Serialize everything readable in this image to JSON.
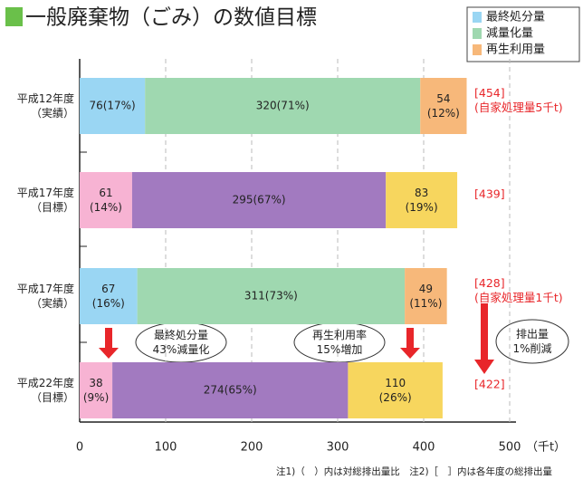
{
  "chart_data": {
    "type": "stacked-bar-horizontal",
    "title": "一般廃棄物（ごみ）の数値目標",
    "categories": [
      "平成12年度\n（実績）",
      "平成17年度\n（目標）",
      "平成17年度\n（実績）",
      "平成22年度\n（目標）"
    ],
    "series": [
      {
        "name": "最終処分量",
        "color": "#9ad6f3",
        "colors": [
          "#9ad6f3",
          "#f7b3d3",
          "#9ad6f3",
          "#f7b3d3"
        ],
        "values": [
          76,
          61,
          67,
          38
        ],
        "value_labels": [
          "76(17%)",
          "61\n(14%)",
          "67\n(16%)",
          "38\n(9%)"
        ]
      },
      {
        "name": "減量化量",
        "color": "#9fd8b0",
        "colors": [
          "#9fd8b0",
          "#a27ac0",
          "#9fd8b0",
          "#a27ac0"
        ],
        "values": [
          320,
          295,
          311,
          274
        ],
        "value_labels": [
          "320(71%)",
          "295(67%)",
          "311(73%)",
          "274(65%)"
        ]
      },
      {
        "name": "再生利用量",
        "color": "#f7b87a",
        "colors": [
          "#f7b87a",
          "#f7d65e",
          "#f7b87a",
          "#f7d65e"
        ],
        "values": [
          54,
          83,
          49,
          110
        ],
        "value_labels": [
          "54\n(12%)",
          "83\n(19%)",
          "49\n(11%)",
          "110\n(26%)"
        ]
      }
    ],
    "totals": [
      "[454]\n(自家処理量5千t)",
      "[439]",
      "[428]\n(自家処理量1千t)",
      "[422]"
    ],
    "callouts": [
      "最終処分量\n43%減量化",
      "再生利用率\n15%増加",
      "排出量\n1%削減"
    ],
    "xlim": [
      0,
      500
    ],
    "xticks": [
      0,
      100,
      200,
      300,
      400,
      500
    ],
    "grid": true,
    "x_unit": "（千t）",
    "footnote": "注1)（　）内は対総排出量比　注2)［　］内は各年度の総排出量"
  }
}
